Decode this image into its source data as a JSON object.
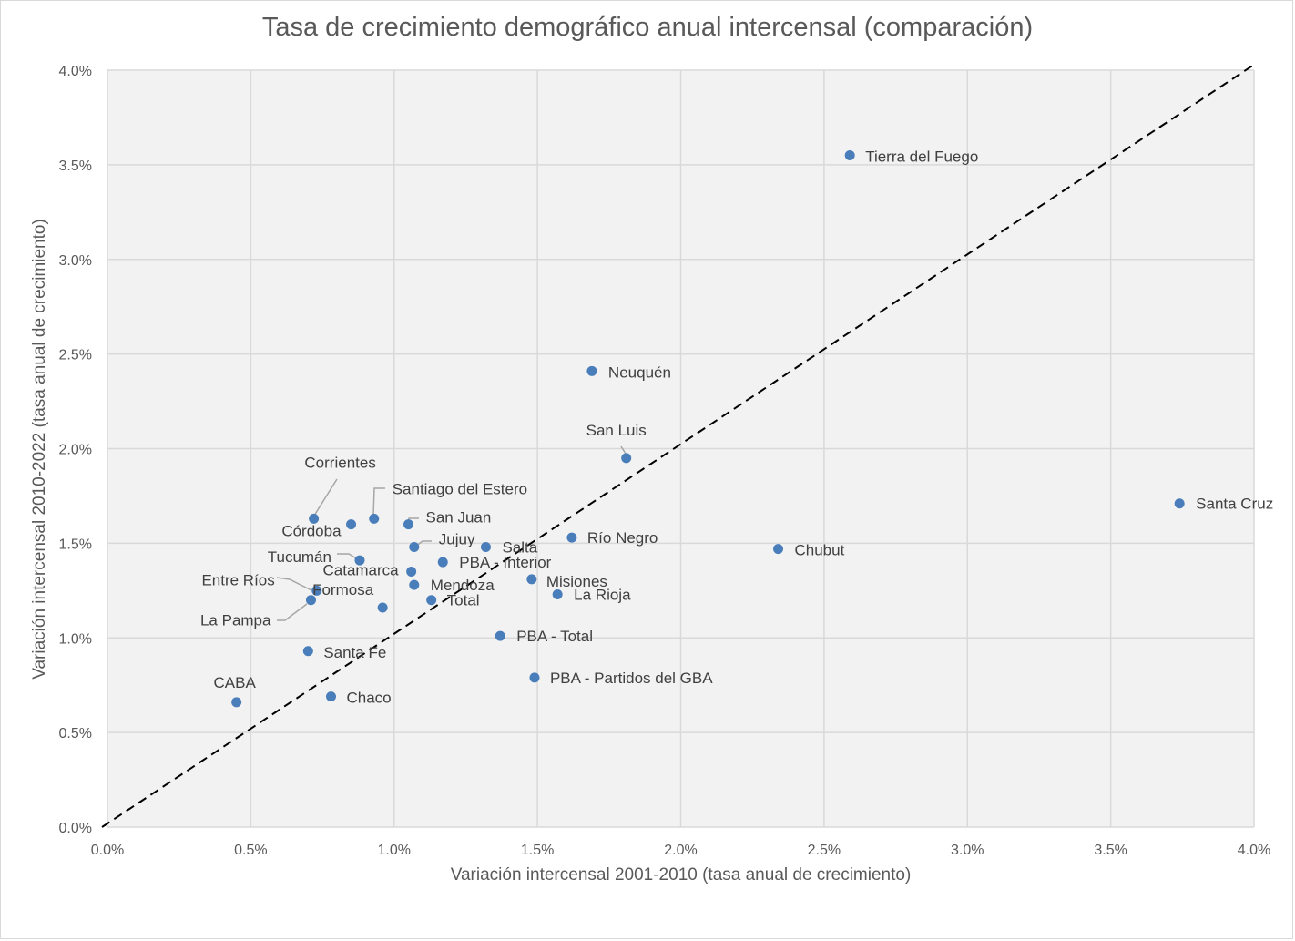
{
  "chart_data": {
    "type": "scatter",
    "title": "Tasa de crecimiento demográfico anual intercensal (comparación)",
    "xlabel": "Variación intercensal 2001-2010 (tasa anual de crecimiento)",
    "ylabel": "Variación intercensal 2010-2022 (tasa anual de crecimiento)",
    "xlim": [
      0,
      0.04
    ],
    "ylim": [
      0,
      0.04
    ],
    "x_ticks": [
      "0.0%",
      "0.5%",
      "1.0%",
      "1.5%",
      "2.0%",
      "2.5%",
      "3.0%",
      "3.5%",
      "4.0%"
    ],
    "y_ticks": [
      "0.0%",
      "0.5%",
      "1.0%",
      "1.5%",
      "2.0%",
      "2.5%",
      "3.0%",
      "3.5%",
      "4.0%"
    ],
    "grid": true,
    "reference_line": "y = x (dashed)",
    "point_color": "#4a7ebb",
    "plot_background": "#f2f2f2",
    "points": [
      {
        "label": "Tierra del Fuego",
        "x": 0.0259,
        "y": 0.0355
      },
      {
        "label": "Neuquén",
        "x": 0.0169,
        "y": 0.0241
      },
      {
        "label": "San Luis",
        "x": 0.0181,
        "y": 0.0195
      },
      {
        "label": "Santa Cruz",
        "x": 0.0374,
        "y": 0.0171
      },
      {
        "label": "Corrientes",
        "x": 0.0072,
        "y": 0.0163
      },
      {
        "label": "Santiago del Estero",
        "x": 0.0093,
        "y": 0.0163
      },
      {
        "label": "Córdoba",
        "x": 0.0085,
        "y": 0.016
      },
      {
        "label": "San Juan",
        "x": 0.0105,
        "y": 0.016
      },
      {
        "label": "Río Negro",
        "x": 0.0162,
        "y": 0.0153
      },
      {
        "label": "Jujuy",
        "x": 0.0107,
        "y": 0.0148
      },
      {
        "label": "Salta",
        "x": 0.0132,
        "y": 0.0148
      },
      {
        "label": "Chubut",
        "x": 0.0234,
        "y": 0.0147
      },
      {
        "label": "Tucumán",
        "x": 0.0088,
        "y": 0.0141
      },
      {
        "label": "PBA - Interior",
        "x": 0.0117,
        "y": 0.014
      },
      {
        "label": "Catamarca",
        "x": 0.0106,
        "y": 0.0135
      },
      {
        "label": "Misiones",
        "x": 0.0148,
        "y": 0.0131
      },
      {
        "label": "Mendoza",
        "x": 0.0107,
        "y": 0.0128
      },
      {
        "label": "Entre Ríos",
        "x": 0.0073,
        "y": 0.0125
      },
      {
        "label": "La Rioja",
        "x": 0.0157,
        "y": 0.0123
      },
      {
        "label": "Total",
        "x": 0.0113,
        "y": 0.012
      },
      {
        "label": "La Pampa",
        "x": 0.0071,
        "y": 0.012
      },
      {
        "label": "Formosa",
        "x": 0.0096,
        "y": 0.0116
      },
      {
        "label": "PBA - Total",
        "x": 0.0137,
        "y": 0.0101
      },
      {
        "label": "Santa Fe",
        "x": 0.007,
        "y": 0.0093
      },
      {
        "label": "PBA - Partidos del GBA",
        "x": 0.0149,
        "y": 0.0079
      },
      {
        "label": "Chaco",
        "x": 0.0078,
        "y": 0.0069
      },
      {
        "label": "CABA",
        "x": 0.0045,
        "y": 0.0066
      }
    ]
  }
}
